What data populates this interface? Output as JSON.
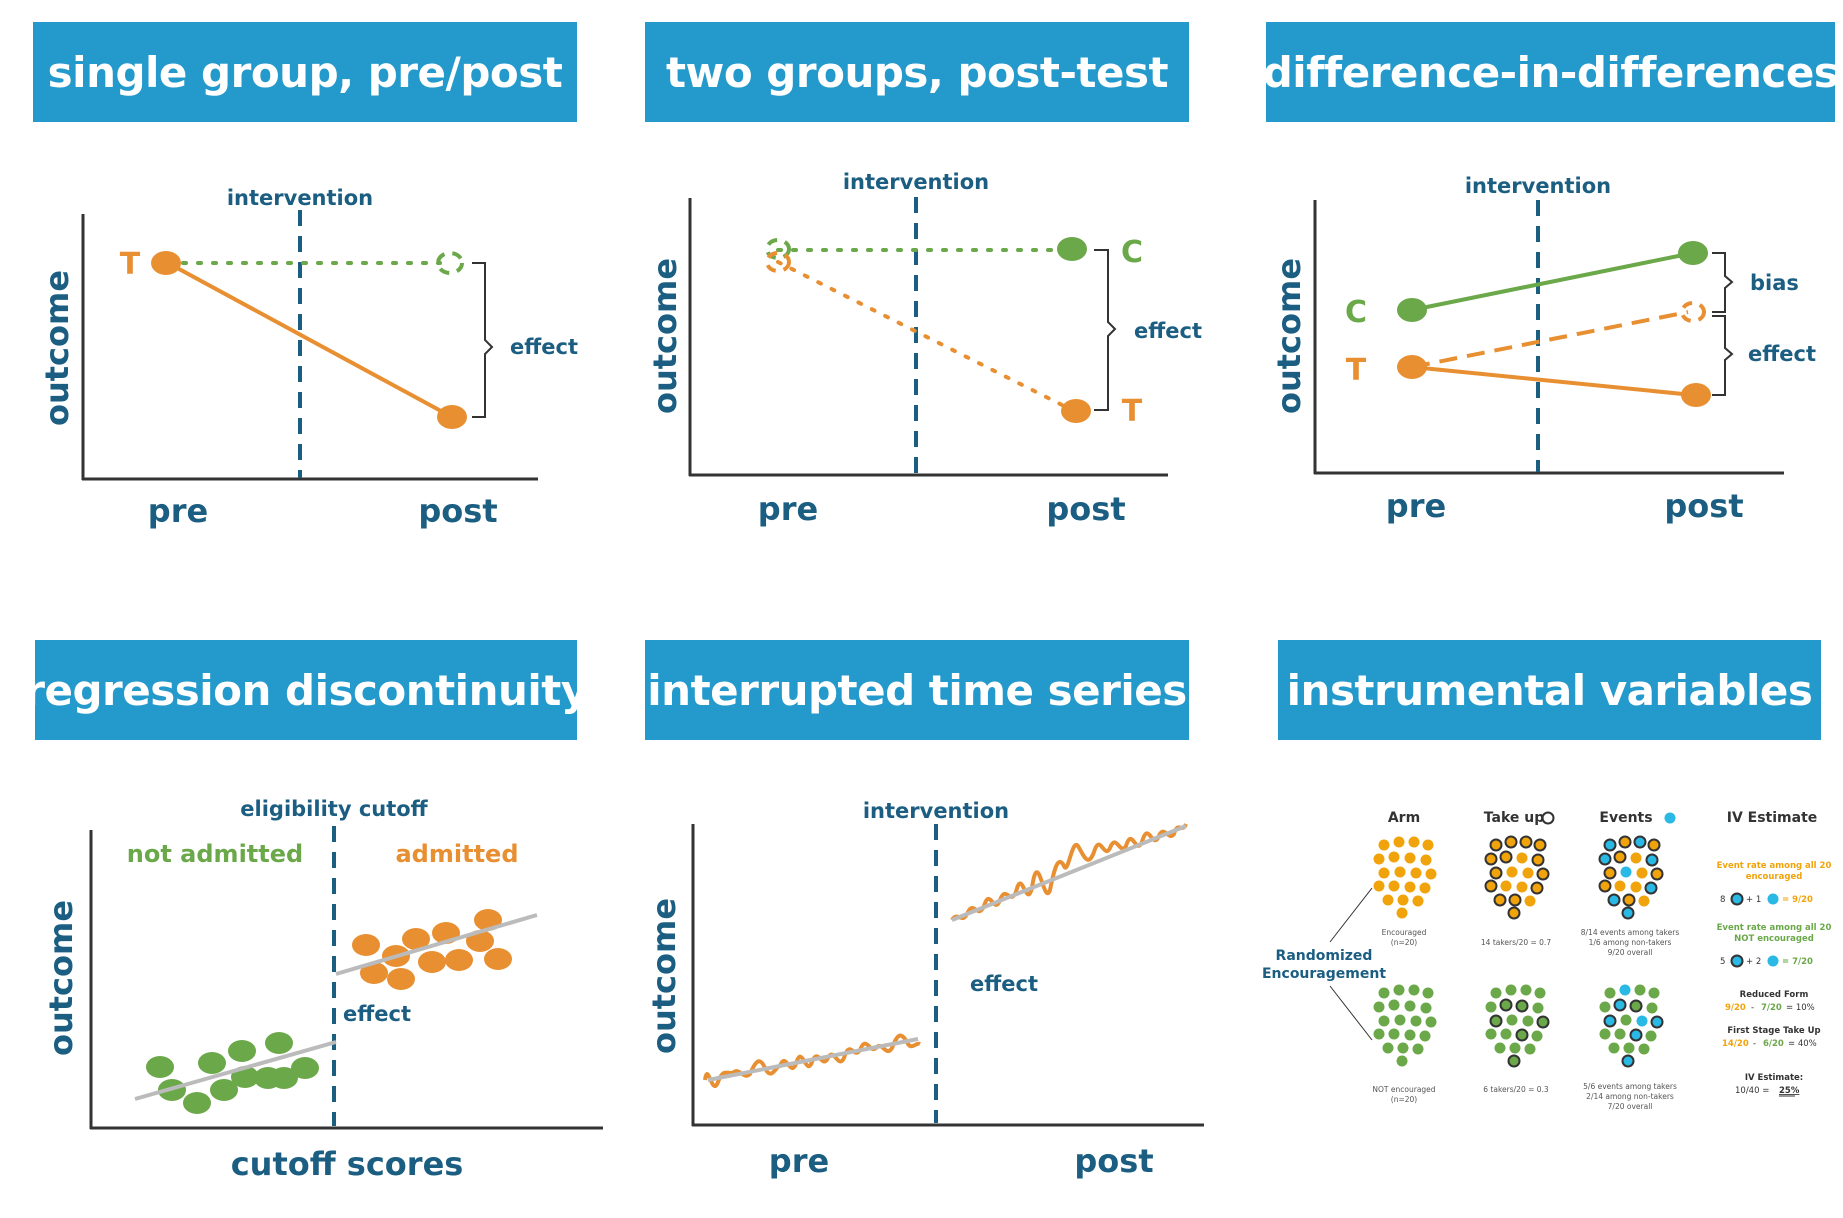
{
  "colors": {
    "banner": "#2499CB",
    "navy": "#1B5E82",
    "orange": "#E88F32",
    "green": "#6BA84A",
    "gray": "#BBBBBB",
    "cyan": "#2AB8E5",
    "dark": "#333333"
  },
  "panels": {
    "single_group": {
      "title": "single group, pre/post",
      "intervention": "intervention",
      "ylabel": "outcome",
      "x_pre": "pre",
      "x_post": "post",
      "group_t": "T",
      "effect": "effect"
    },
    "two_groups": {
      "title": "two groups, post-test",
      "intervention": "intervention",
      "ylabel": "outcome",
      "x_pre": "pre",
      "x_post": "post",
      "group_c": "C",
      "group_t": "T",
      "effect": "effect"
    },
    "did": {
      "title": "difference-in-differences",
      "intervention": "intervention",
      "ylabel": "outcome",
      "x_pre": "pre",
      "x_post": "post",
      "group_c": "C",
      "group_t": "T",
      "bias": "bias",
      "effect": "effect"
    },
    "rd": {
      "title": "regression discontinuity",
      "cutoff": "eligibility cutoff",
      "not_admitted": "not admitted",
      "admitted": "admitted",
      "ylabel": "outcome",
      "xlabel": "cutoff scores",
      "effect": "effect"
    },
    "its": {
      "title": "interrupted time series",
      "intervention": "intervention",
      "ylabel": "outcome",
      "x_pre": "pre",
      "x_post": "post",
      "effect": "effect"
    },
    "iv": {
      "title": "instrumental variables",
      "col_arm": "Arm",
      "col_takeup": "Take up",
      "col_events": "Events",
      "col_iv": "IV Estimate",
      "randomized": "Randomized",
      "encouragement": "Encouragement",
      "enc_label1": "Encouraged",
      "enc_label2": "(n=20)",
      "not_label1": "NOT encouraged",
      "not_label2": "(n=20)",
      "takers_enc": "14 takers/20 = 0.7",
      "takers_not": "6 takers/20 = 0.3",
      "events_enc_1": "8/14 events among takers",
      "events_enc_2": "1/6 among non-takers",
      "events_enc_3": "9/20 overall",
      "events_not_1": "5/6 events among takers",
      "events_not_2": "2/14 among non-takers",
      "events_not_3": "7/20 overall",
      "rate_enc_1": "Event rate among all 20",
      "rate_enc_2": "encouraged",
      "rate_enc_eq_a": "8",
      "rate_enc_eq_b": "+ 1",
      "rate_enc_eq_c": "= 9/20",
      "rate_not_1": "Event rate among all 20",
      "rate_not_2": "NOT encouraged",
      "rate_not_eq_a": "5",
      "rate_not_eq_b": "+ 2",
      "rate_not_eq_c": "= 7/20",
      "reduced_form": "Reduced Form",
      "rf_a": "9/20",
      "rf_b": "-",
      "rf_c": "7/20",
      "rf_d": "= 10%",
      "first_stage": "First Stage Take Up",
      "fs_a": "14/20",
      "fs_b": "-",
      "fs_c": "6/20",
      "fs_d": "= 40%",
      "iv_estimate": "IV Estimate:",
      "iv_eq_a": "10/40 =",
      "iv_eq_b": "25%"
    }
  }
}
